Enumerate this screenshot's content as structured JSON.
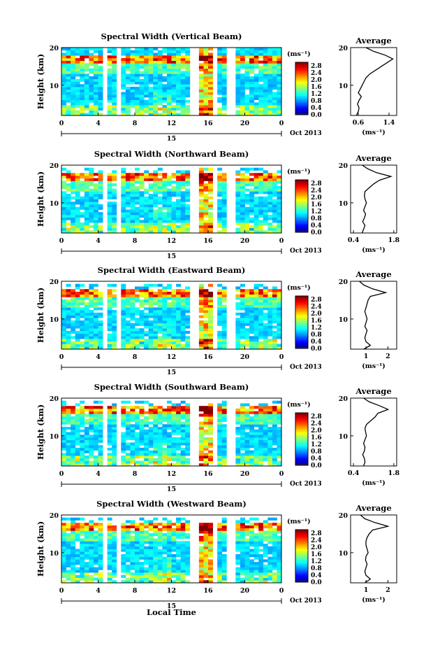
{
  "figure": {
    "xlabel": "Local Time",
    "date_label": "Oct 2013",
    "day_label": "15",
    "ylabel": "Height (km)",
    "cbar_unit": "(ms⁻¹)",
    "avg_title": "Average",
    "avg_xlabel": "(ms⁻¹)"
  },
  "chart_data": [
    {
      "type": "heatmap",
      "title": "Spectral Width (Vertical Beam)",
      "x_ticks": [
        "0",
        "4",
        "8",
        "12",
        "16",
        "20",
        "0"
      ],
      "xlim": [
        0,
        24
      ],
      "y_ticks": [
        "10",
        "20"
      ],
      "ylim": [
        2,
        20
      ],
      "colorbar_ticks": [
        "0.0",
        "0.4",
        "0.8",
        "1.2",
        "1.6",
        "2.0",
        "2.4",
        "2.8"
      ],
      "colorbar_range": [
        0,
        3.0
      ],
      "gaps_hours": [
        [
          4.5,
          5.2
        ],
        [
          5.8,
          6.7
        ],
        [
          14.2,
          14.8
        ],
        [
          16.5,
          17.0
        ],
        [
          17.9,
          18.9
        ]
      ],
      "average_profile": {
        "x_ticks": [
          "0.6",
          "1.4"
        ],
        "xlim": [
          0.4,
          1.6
        ],
        "y_ticks": [
          "10",
          "20"
        ],
        "height_km": [
          2,
          3,
          4,
          5,
          6,
          7,
          8,
          9,
          10,
          11,
          12,
          13,
          14,
          15,
          16,
          17,
          18,
          19,
          20
        ],
        "width_ms": [
          0.55,
          0.6,
          0.62,
          0.58,
          0.62,
          0.68,
          0.6,
          0.65,
          0.7,
          0.75,
          0.8,
          0.9,
          1.05,
          1.2,
          1.35,
          1.5,
          1.3,
          1.0,
          0.8
        ]
      }
    },
    {
      "type": "heatmap",
      "title": "Spectral Width (Northward Beam)",
      "x_ticks": [
        "0",
        "4",
        "8",
        "12",
        "16",
        "20",
        "0"
      ],
      "xlim": [
        0,
        24
      ],
      "y_ticks": [
        "10",
        "20"
      ],
      "ylim": [
        2,
        20
      ],
      "colorbar_ticks": [
        "0.0",
        "0.4",
        "0.8",
        "1.2",
        "1.6",
        "2.0",
        "2.4",
        "2.8"
      ],
      "colorbar_range": [
        0,
        3.0
      ],
      "gaps_hours": [
        [
          4.5,
          5.1
        ],
        [
          5.9,
          6.5
        ],
        [
          14.2,
          14.8
        ],
        [
          16.5,
          17.0
        ],
        [
          17.9,
          18.9
        ]
      ],
      "average_profile": {
        "x_ticks": [
          "0.4",
          "1.8"
        ],
        "xlim": [
          0.3,
          1.9
        ],
        "y_ticks": [
          "10",
          "20"
        ],
        "height_km": [
          2,
          3,
          4,
          5,
          6,
          7,
          8,
          9,
          10,
          11,
          12,
          13,
          14,
          15,
          16,
          17,
          18,
          19,
          20
        ],
        "width_ms": [
          0.7,
          0.75,
          0.8,
          0.72,
          0.78,
          0.82,
          0.75,
          0.8,
          0.85,
          0.8,
          0.78,
          0.8,
          0.95,
          1.1,
          1.3,
          1.7,
          1.2,
          0.9,
          0.7
        ]
      }
    },
    {
      "type": "heatmap",
      "title": "Spectral Width (Eastward Beam)",
      "x_ticks": [
        "0",
        "4",
        "8",
        "12",
        "16",
        "20",
        "0"
      ],
      "xlim": [
        0,
        24
      ],
      "y_ticks": [
        "10",
        "20"
      ],
      "ylim": [
        2,
        20
      ],
      "colorbar_ticks": [
        "0.0",
        "0.4",
        "0.8",
        "1.2",
        "1.6",
        "2.0",
        "2.4",
        "2.8"
      ],
      "colorbar_range": [
        0,
        3.0
      ],
      "gaps_hours": [
        [
          4.5,
          5.2
        ],
        [
          5.9,
          6.7
        ],
        [
          14.2,
          14.8
        ],
        [
          16.5,
          17.0
        ],
        [
          17.9,
          18.9
        ]
      ],
      "average_profile": {
        "x_ticks": [
          "1",
          "2"
        ],
        "xlim": [
          0.3,
          2.4
        ],
        "y_ticks": [
          "10",
          "20"
        ],
        "height_km": [
          2,
          3,
          4,
          5,
          6,
          7,
          8,
          9,
          10,
          11,
          12,
          13,
          14,
          15,
          16,
          17,
          18,
          19,
          20
        ],
        "width_ms": [
          0.9,
          1.2,
          1.0,
          0.95,
          1.0,
          1.05,
          0.95,
          1.0,
          1.05,
          1.0,
          0.95,
          1.0,
          1.05,
          1.1,
          1.2,
          1.9,
          1.3,
          0.9,
          0.7
        ]
      }
    },
    {
      "type": "heatmap",
      "title": "Spectral Width (Southward Beam)",
      "x_ticks": [
        "0",
        "4",
        "8",
        "12",
        "16",
        "20",
        "0"
      ],
      "xlim": [
        0,
        24
      ],
      "y_ticks": [
        "10",
        "20"
      ],
      "ylim": [
        2,
        20
      ],
      "colorbar_ticks": [
        "0.0",
        "0.4",
        "0.8",
        "1.2",
        "1.6",
        "2.0",
        "2.4",
        "2.8"
      ],
      "colorbar_range": [
        0,
        3.0
      ],
      "gaps_hours": [
        [
          4.5,
          5.1
        ],
        [
          5.9,
          6.5
        ],
        [
          14.2,
          14.8
        ],
        [
          16.5,
          17.0
        ],
        [
          17.9,
          18.9
        ]
      ],
      "average_profile": {
        "x_ticks": [
          "0.4",
          "1.8"
        ],
        "xlim": [
          0.3,
          1.9
        ],
        "y_ticks": [
          "10",
          "20"
        ],
        "height_km": [
          2,
          3,
          4,
          5,
          6,
          7,
          8,
          9,
          10,
          11,
          12,
          13,
          14,
          15,
          16,
          17,
          18,
          19,
          20
        ],
        "width_ms": [
          0.75,
          0.8,
          0.78,
          0.72,
          0.78,
          0.8,
          0.75,
          0.8,
          0.85,
          0.82,
          0.8,
          0.85,
          1.0,
          1.15,
          1.25,
          1.6,
          1.3,
          0.95,
          0.75
        ]
      }
    },
    {
      "type": "heatmap",
      "title": "Spectral Width (Westward Beam)",
      "x_ticks": [
        "0",
        "4",
        "8",
        "12",
        "16",
        "20",
        "0"
      ],
      "xlim": [
        0,
        24
      ],
      "y_ticks": [
        "10",
        "20"
      ],
      "ylim": [
        2,
        20
      ],
      "colorbar_ticks": [
        "0.0",
        "0.4",
        "0.8",
        "1.2",
        "1.6",
        "2.0",
        "2.4",
        "2.8"
      ],
      "colorbar_range": [
        0,
        3.0
      ],
      "gaps_hours": [
        [
          4.5,
          5.1
        ],
        [
          5.9,
          6.6
        ],
        [
          14.2,
          14.8
        ],
        [
          16.5,
          17.0
        ],
        [
          17.9,
          18.9
        ]
      ],
      "average_profile": {
        "x_ticks": [
          "1",
          "2"
        ],
        "xlim": [
          0.3,
          2.4
        ],
        "y_ticks": [
          "10",
          "20"
        ],
        "height_km": [
          2,
          3,
          4,
          5,
          6,
          7,
          8,
          9,
          10,
          11,
          12,
          13,
          14,
          15,
          16,
          17,
          18,
          19,
          20
        ],
        "width_ms": [
          0.95,
          1.2,
          1.0,
          0.95,
          1.0,
          1.05,
          0.98,
          1.0,
          1.1,
          1.05,
          1.0,
          1.0,
          1.05,
          1.15,
          1.3,
          2.0,
          1.4,
          0.95,
          0.75
        ]
      }
    }
  ]
}
